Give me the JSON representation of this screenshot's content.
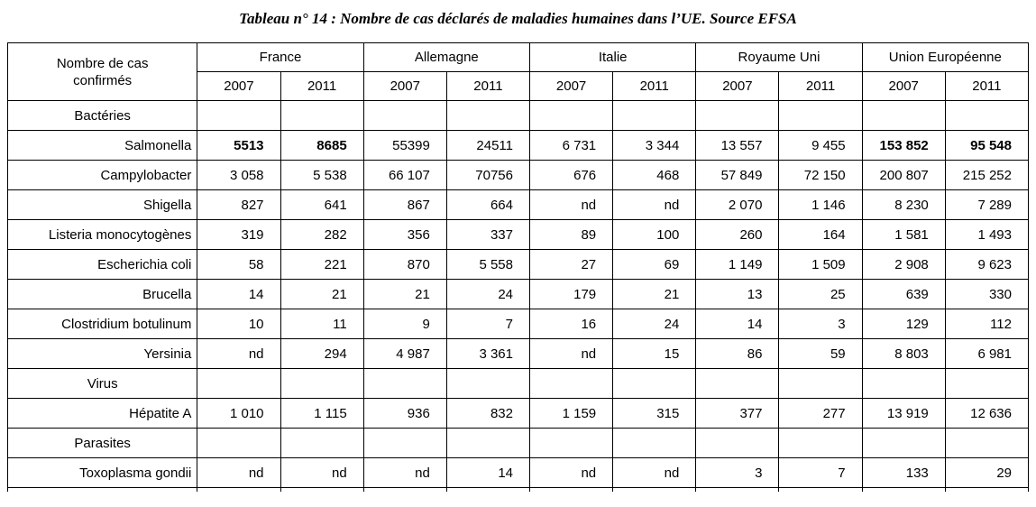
{
  "page_title": "Tableau n° 14 : Nombre de cas déclarés de maladies humaines dans l’UE. Source EFSA",
  "table": {
    "corner": "Nombre de cas confirmés",
    "groups": [
      {
        "label": "France",
        "years": [
          "2007",
          "2011"
        ]
      },
      {
        "label": "Allemagne",
        "years": [
          "2007",
          "2011"
        ]
      },
      {
        "label": "Italie",
        "years": [
          "2007",
          "2011"
        ]
      },
      {
        "label": "Royaume Uni",
        "years": [
          "2007",
          "2011"
        ]
      },
      {
        "label": "Union Européenne",
        "years": [
          "2007",
          "2011"
        ]
      }
    ],
    "rows": [
      {
        "type": "section",
        "label": "Bactéries",
        "values": [
          "",
          "",
          "",
          "",
          "",
          "",
          "",
          "",
          "",
          ""
        ]
      },
      {
        "type": "data",
        "label": "Salmonella",
        "values": [
          "5513",
          "8685",
          "55399",
          "24511",
          "6 731",
          "3 344",
          "13 557",
          "9 455",
          "153 852",
          "95 548"
        ],
        "bold": [
          0,
          1,
          8,
          9
        ]
      },
      {
        "type": "data",
        "label": "Campylobacter",
        "values": [
          "3 058",
          "5 538",
          "66 107",
          "70756",
          "676",
          "468",
          "57 849",
          "72 150",
          "200 807",
          "215 252"
        ]
      },
      {
        "type": "data",
        "label": "Shigella",
        "values": [
          "827",
          "641",
          "867",
          "664",
          "nd",
          "nd",
          "2 070",
          "1 146",
          "8 230",
          "7 289"
        ]
      },
      {
        "type": "data",
        "label": "Listeria monocytogènes",
        "values": [
          "319",
          "282",
          "356",
          "337",
          "89",
          "100",
          "260",
          "164",
          "1 581",
          "1 493"
        ]
      },
      {
        "type": "data",
        "label": "Escherichia coli",
        "values": [
          "58",
          "221",
          "870",
          "5 558",
          "27",
          "69",
          "1 149",
          "1 509",
          "2 908",
          "9 623"
        ]
      },
      {
        "type": "data",
        "label": "Brucella",
        "values": [
          "14",
          "21",
          "21",
          "24",
          "179",
          "21",
          "13",
          "25",
          "639",
          "330"
        ]
      },
      {
        "type": "data",
        "label": "Clostridium botulinum",
        "values": [
          "10",
          "11",
          "9",
          "7",
          "16",
          "24",
          "14",
          "3",
          "129",
          "112"
        ]
      },
      {
        "type": "data",
        "label": "Yersinia",
        "values": [
          "nd",
          "294",
          "4 987",
          "3 361",
          "nd",
          "15",
          "86",
          "59",
          "8 803",
          "6 981"
        ]
      },
      {
        "type": "section",
        "label": "Virus",
        "values": [
          "",
          "",
          "",
          "",
          "",
          "",
          "",
          "",
          "",
          ""
        ]
      },
      {
        "type": "data",
        "label": "Hépatite A",
        "values": [
          "1 010",
          "1 115",
          "936",
          "832",
          "1 159",
          "315",
          "377",
          "277",
          "13 919",
          "12 636"
        ]
      },
      {
        "type": "section",
        "label": "Parasites",
        "values": [
          "",
          "",
          "",
          "",
          "",
          "",
          "",
          "",
          "",
          ""
        ]
      },
      {
        "type": "data",
        "label": "Toxoplasma gondii",
        "values": [
          "nd",
          "nd",
          "nd",
          "14",
          "nd",
          "nd",
          "3",
          "7",
          "133",
          "29"
        ]
      },
      {
        "type": "empty",
        "label": "",
        "values": [
          "",
          "",
          "",
          "",
          "",
          "",
          "",
          "",
          "",
          ""
        ]
      }
    ]
  },
  "chart_data": {
    "type": "table",
    "title": "Tableau n° 14 : Nombre de cas déclarés de maladies humaines dans l’UE. Source EFSA",
    "columns": [
      "Nombre de cas confirmés",
      "France 2007",
      "France 2011",
      "Allemagne 2007",
      "Allemagne 2011",
      "Italie 2007",
      "Italie 2011",
      "Royaume Uni 2007",
      "Royaume Uni 2011",
      "Union Européenne 2007",
      "Union Européenne 2011"
    ],
    "rows": [
      [
        "Bactéries",
        "",
        "",
        "",
        "",
        "",
        "",
        "",
        "",
        "",
        ""
      ],
      [
        "Salmonella",
        "5513",
        "8685",
        "55399",
        "24511",
        "6 731",
        "3 344",
        "13 557",
        "9 455",
        "153 852",
        "95 548"
      ],
      [
        "Campylobacter",
        "3 058",
        "5 538",
        "66 107",
        "70756",
        "676",
        "468",
        "57 849",
        "72 150",
        "200 807",
        "215 252"
      ],
      [
        "Shigella",
        "827",
        "641",
        "867",
        "664",
        "nd",
        "nd",
        "2 070",
        "1 146",
        "8 230",
        "7 289"
      ],
      [
        "Listeria monocytogènes",
        "319",
        "282",
        "356",
        "337",
        "89",
        "100",
        "260",
        "164",
        "1 581",
        "1 493"
      ],
      [
        "Escherichia coli",
        "58",
        "221",
        "870",
        "5 558",
        "27",
        "69",
        "1 149",
        "1 509",
        "2 908",
        "9 623"
      ],
      [
        "Brucella",
        "14",
        "21",
        "21",
        "24",
        "179",
        "21",
        "13",
        "25",
        "639",
        "330"
      ],
      [
        "Clostridium botulinum",
        "10",
        "11",
        "9",
        "7",
        "16",
        "24",
        "14",
        "3",
        "129",
        "112"
      ],
      [
        "Yersinia",
        "nd",
        "294",
        "4 987",
        "3 361",
        "nd",
        "15",
        "86",
        "59",
        "8 803",
        "6 981"
      ],
      [
        "Virus",
        "",
        "",
        "",
        "",
        "",
        "",
        "",
        "",
        "",
        ""
      ],
      [
        "Hépatite A",
        "1 010",
        "1 115",
        "936",
        "832",
        "1 159",
        "315",
        "377",
        "277",
        "13 919",
        "12 636"
      ],
      [
        "Parasites",
        "",
        "",
        "",
        "",
        "",
        "",
        "",
        "",
        "",
        ""
      ],
      [
        "Toxoplasma gondii",
        "nd",
        "nd",
        "nd",
        "14",
        "nd",
        "nd",
        "3",
        "7",
        "133",
        "29"
      ]
    ]
  }
}
